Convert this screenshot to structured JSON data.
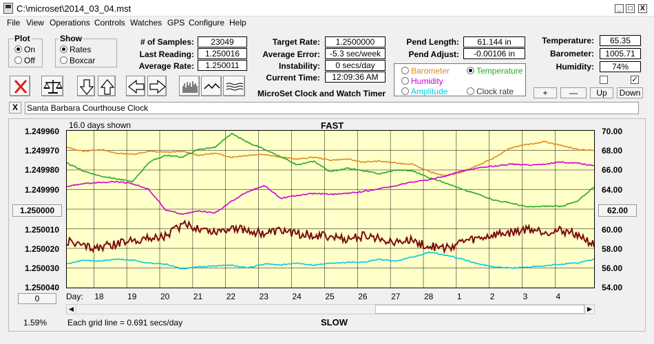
{
  "window": {
    "title": "C:\\microset\\2014_03_04.mst"
  },
  "titlebar_buttons": {
    "minimize": "_",
    "maximize": "□",
    "close": "X"
  },
  "menu": [
    "File",
    "View",
    "Operations",
    "Controls",
    "Watches",
    "GPS",
    "Configure",
    "Help"
  ],
  "plot_group": {
    "title": "Plot",
    "on": "On",
    "off": "Off",
    "selected": "On"
  },
  "show_group": {
    "title": "Show",
    "rates": "Rates",
    "boxcar": "Boxcar",
    "selected": "Rates"
  },
  "stats": {
    "samples_label": "# of Samples:",
    "samples": "23049",
    "last_label": "Last Reading:",
    "last": "1.250016",
    "avg_rate_label": "Average Rate:",
    "avg_rate": "1.250011",
    "target_label": "Target Rate:",
    "target": "1.2500000",
    "avg_err_label": "Average Error:",
    "avg_err": "-5.3 sec/week",
    "instab_label": "Instability:",
    "instab": "0 secs/day",
    "time_label": "Current Time:",
    "time": "12:09:36 AM",
    "pend_len_label": "Pend Length:",
    "pend_len": "61.144 in",
    "pend_adj_label": "Pend Adjust:",
    "pend_adj": "-0.00106 in",
    "temp_label": "Temperature:",
    "temp": "65.35",
    "baro_label": "Barometer:",
    "baro": "1005.71",
    "hum_label": "Humidity:",
    "hum": "74%"
  },
  "app_name": "MicroSet Clock and Watch Timer",
  "sensors": {
    "barometer": "Barometer",
    "temperature": "Temperature",
    "humidity": "Humidity",
    "amplitude": "Amplitude",
    "clock_rate": "Clock rate",
    "selected": "Temperature"
  },
  "sensor_colors": {
    "barometer": "#e08a1e",
    "temperature": "#22aa22",
    "humidity": "#d000d0",
    "amplitude": "#00c8e8",
    "rate": "#7a0a0a"
  },
  "right_buttons": {
    "plus": "+",
    "minus": "—",
    "up": "Up",
    "down": "Down"
  },
  "checkboxes": {
    "left_checked": false,
    "right_checked": true
  },
  "clock_name": "Santa Barbara Courthouse Clock",
  "clear_button": "X",
  "chart": {
    "days_shown": "16.0 days shown",
    "fast": "FAST",
    "slow": "SLOW",
    "left_center": "1.250000",
    "right_center": "62.00",
    "left_bottom_button": "0",
    "percent": "1.59%",
    "grid_note": "Each grid line = 0.691 secs/day",
    "day_label": "Day:"
  },
  "chart_data": {
    "type": "line",
    "y_left_ticks": [
      "1.249960",
      "1.249970",
      "1.249980",
      "1.249990",
      "1.250000",
      "1.250010",
      "1.250020",
      "1.250030",
      "1.250040"
    ],
    "y_right_ticks": [
      "70.00",
      "68.00",
      "66.00",
      "64.00",
      "62.00",
      "60.00",
      "58.00",
      "56.00",
      "54.00"
    ],
    "x_ticks": [
      "18",
      "19",
      "20",
      "21",
      "22",
      "23",
      "24",
      "25",
      "26",
      "27",
      "28",
      "1",
      "2",
      "3",
      "4"
    ],
    "x_range_days": [
      0,
      16
    ],
    "grid": true,
    "series": [
      {
        "name": "Barometer",
        "key": "barometer",
        "x": [
          0,
          0.5,
          1,
          1.5,
          2,
          2.5,
          3,
          3.5,
          4,
          4.5,
          5,
          5.5,
          6,
          6.5,
          7,
          7.5,
          8,
          8.5,
          9,
          9.5,
          10,
          10.5,
          11,
          11.5,
          12,
          12.5,
          13,
          13.5,
          14,
          14.5,
          15,
          15.5,
          16
        ],
        "y": [
          68.3,
          67.9,
          68.1,
          67.7,
          67.6,
          67.9,
          67.8,
          67.9,
          67.5,
          67.7,
          67.3,
          67.5,
          67.6,
          67.3,
          67.1,
          67.3,
          67.0,
          67.1,
          66.8,
          66.9,
          66.7,
          66.6,
          65.8,
          65.4,
          65.8,
          66.5,
          67.3,
          68.3,
          68.6,
          68.9,
          68.5,
          68.1,
          68.0
        ]
      },
      {
        "name": "Temperature",
        "key": "temperature",
        "x": [
          0,
          0.5,
          1,
          1.5,
          2,
          2.5,
          3,
          3.5,
          4,
          4.5,
          5,
          5.5,
          6,
          6.5,
          7,
          7.5,
          8,
          8.5,
          9,
          9.5,
          10,
          10.5,
          11,
          11.5,
          12,
          12.5,
          13,
          13.5,
          14,
          14.5,
          15,
          15.5,
          16
        ],
        "y": [
          66.7,
          65.9,
          65.4,
          65.1,
          64.8,
          66.8,
          67.5,
          67.3,
          68.1,
          68.3,
          69.7,
          68.8,
          68.1,
          67.3,
          66.5,
          66.9,
          65.8,
          66.2,
          65.9,
          65.6,
          66.0,
          65.9,
          65.2,
          64.7,
          64.0,
          63.5,
          62.9,
          62.6,
          62.2,
          62.3,
          62.3,
          62.8,
          64.3
        ]
      },
      {
        "name": "Humidity",
        "key": "humidity",
        "x": [
          0,
          0.5,
          1,
          1.5,
          2,
          2.5,
          3,
          3.5,
          4,
          4.5,
          5,
          5.5,
          6,
          6.5,
          7,
          7.5,
          8,
          8.5,
          9,
          9.5,
          10,
          10.5,
          11,
          11.5,
          12,
          12.5,
          13,
          13.5,
          14,
          14.5,
          15,
          15.5,
          16
        ],
        "y": [
          64.3,
          64.6,
          64.7,
          64.8,
          64.6,
          64.0,
          61.9,
          61.5,
          61.8,
          61.6,
          62.8,
          63.8,
          64.4,
          63.1,
          63.4,
          63.6,
          63.5,
          63.6,
          63.8,
          64.1,
          64.4,
          64.8,
          65.0,
          65.4,
          65.9,
          66.2,
          66.4,
          66.6,
          66.5,
          66.6,
          66.8,
          66.7,
          66.4
        ]
      },
      {
        "name": "Amplitude",
        "key": "amplitude",
        "x": [
          0,
          0.5,
          1,
          1.5,
          2,
          2.5,
          3,
          3.5,
          4,
          4.5,
          5,
          5.5,
          6,
          6.5,
          7,
          7.5,
          8,
          8.5,
          9,
          9.5,
          10,
          10.5,
          11,
          11.5,
          12,
          12.5,
          13,
          13.5,
          14,
          14.5,
          15,
          15.5,
          16
        ],
        "y": [
          56.4,
          56.8,
          56.7,
          56.9,
          56.8,
          56.5,
          56.4,
          55.9,
          56.1,
          56.2,
          56.3,
          56.0,
          56.4,
          56.3,
          56.5,
          56.3,
          56.5,
          56.6,
          56.6,
          56.9,
          56.7,
          57.1,
          57.6,
          57.3,
          56.9,
          56.4,
          56.1,
          56.0,
          56.1,
          56.2,
          56.4,
          56.5,
          56.9
        ]
      },
      {
        "name": "Rate",
        "key": "rate",
        "x": [
          0,
          0.5,
          1,
          1.5,
          2,
          2.5,
          3,
          3.5,
          4,
          4.5,
          5,
          5.5,
          6,
          6.5,
          7,
          7.5,
          8,
          8.5,
          9,
          9.5,
          10,
          10.5,
          11,
          11.5,
          12,
          12.5,
          13,
          13.5,
          14,
          14.5,
          15,
          15.5,
          16
        ],
        "y": [
          58.8,
          58.2,
          58.1,
          58.4,
          58.9,
          59.0,
          59.3,
          60.4,
          60.1,
          59.7,
          60.2,
          59.8,
          59.5,
          59.8,
          59.5,
          59.4,
          59.2,
          58.9,
          59.3,
          59.0,
          58.7,
          58.8,
          58.2,
          58.0,
          58.7,
          59.0,
          59.4,
          59.6,
          60.0,
          59.7,
          59.8,
          59.5,
          58.3
        ]
      }
    ]
  }
}
